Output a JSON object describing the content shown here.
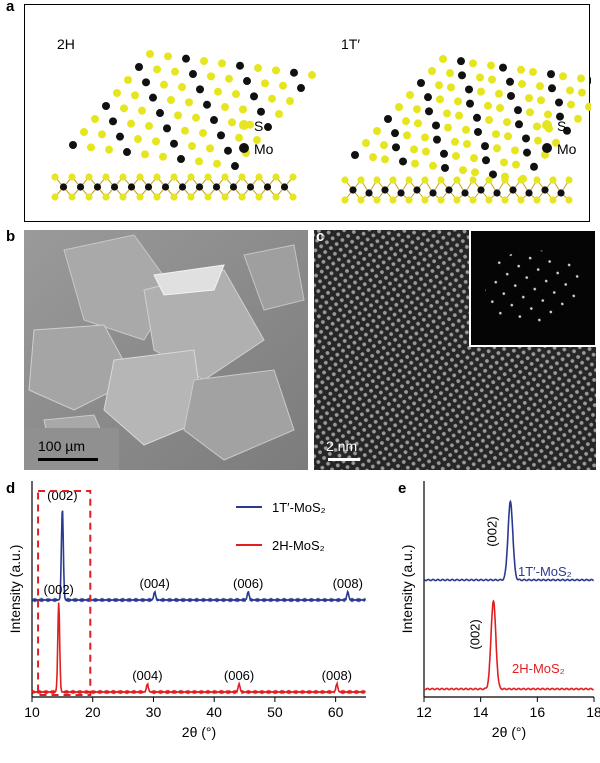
{
  "panels": {
    "a": {
      "letter": "a",
      "left_label": "2H",
      "right_label": "1T′",
      "legend_s": "S",
      "legend_mo": "Mo",
      "colors": {
        "S": "#e6e620",
        "Mo": "#111111",
        "bond": "#c9a020"
      }
    },
    "b": {
      "letter": "b",
      "scale_bar": "100 µm"
    },
    "c": {
      "letter": "c",
      "scale_bar": "2 nm"
    },
    "d": {
      "letter": "d"
    },
    "e": {
      "letter": "e"
    }
  },
  "chart_data": [
    {
      "panel": "d",
      "type": "line",
      "xlabel": "2θ (°)",
      "ylabel": "Intensity (a.u.)",
      "xlim": [
        10,
        65
      ],
      "xticks": [
        10,
        20,
        30,
        40,
        50,
        60
      ],
      "series": [
        {
          "name": "1T′-MoS₂",
          "color": "#2b3a8f",
          "peaks": [
            {
              "x": 15.0,
              "label": "(002)"
            },
            {
              "x": 30.2,
              "label": "(004)"
            },
            {
              "x": 45.6,
              "label": "(006)"
            },
            {
              "x": 62.0,
              "label": "(008)"
            }
          ]
        },
        {
          "name": "2H-MoS₂",
          "color": "#e02020",
          "peaks": [
            {
              "x": 14.4,
              "label": "(002)"
            },
            {
              "x": 29.0,
              "label": "(004)"
            },
            {
              "x": 44.1,
              "label": "(006)"
            },
            {
              "x": 60.2,
              "label": "(008)"
            }
          ]
        }
      ],
      "highlight_region": [
        11,
        19.6
      ],
      "highlight_color": "#e02020"
    },
    {
      "panel": "e",
      "type": "line",
      "xlabel": "2θ (°)",
      "ylabel": "Intensity (a.u.)",
      "xlim": [
        12,
        18
      ],
      "xticks": [
        12,
        14,
        16,
        18
      ],
      "series": [
        {
          "name": "1T′-MoS₂",
          "color": "#2b3a8f",
          "peaks": [
            {
              "x": 15.05,
              "label": "(002)"
            }
          ]
        },
        {
          "name": "2H-MoS₂",
          "color": "#e02020",
          "peaks": [
            {
              "x": 14.45,
              "label": "(002)"
            }
          ]
        }
      ]
    }
  ]
}
